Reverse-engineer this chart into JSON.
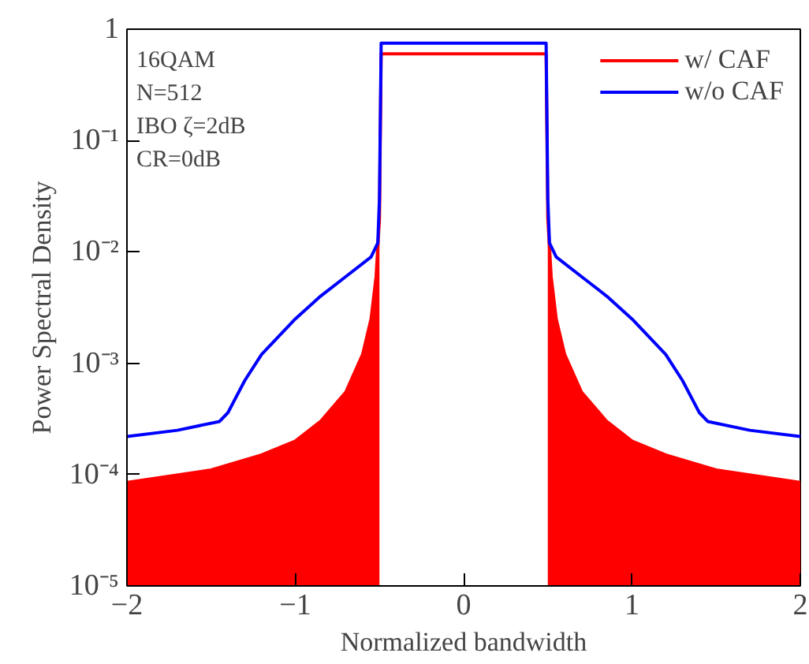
{
  "chart_data": {
    "type": "line",
    "xlabel": "Normalized bandwidth",
    "ylabel": "Power Spectral Density",
    "xlim": [
      -2,
      2
    ],
    "ylim": [
      1e-05,
      1
    ],
    "xticks": [
      -2,
      -1,
      0,
      1,
      2
    ],
    "yticks": [
      {
        "value": 1e-05,
        "label": "10⁻⁵"
      },
      {
        "value": 0.0001,
        "label": "10⁻⁴"
      },
      {
        "value": 0.001,
        "label": "10⁻³"
      },
      {
        "value": 0.01,
        "label": "10⁻²"
      },
      {
        "value": 0.1,
        "label": "10⁻¹"
      },
      {
        "value": 1,
        "label": "1"
      }
    ],
    "log": "y",
    "grid": false,
    "legend": "top right",
    "annotations": [
      "16QAM",
      "N=512",
      "IBO ζ=2dB",
      "CR=0dB"
    ],
    "series": [
      {
        "name": "w/ CAF",
        "color": "#ff0000",
        "x": [
          -2,
          -1.5,
          -1.2,
          -1,
          -0.85,
          -0.7,
          -0.6,
          -0.55,
          -0.52,
          -0.5,
          -0.49,
          0.49,
          0.5,
          0.52,
          0.55,
          0.6,
          0.7,
          0.85,
          1,
          1.2,
          1.5,
          2
        ],
        "values": [
          8.5e-05,
          0.00011,
          0.00015,
          0.0002,
          0.0003,
          0.00055,
          0.0012,
          0.0025,
          0.006,
          0.02,
          0.6,
          0.6,
          0.02,
          0.006,
          0.0025,
          0.0012,
          0.00055,
          0.0003,
          0.0002,
          0.00015,
          0.00011,
          8.5e-05
        ]
      },
      {
        "type": "area",
        "color": "#ff0000",
        "x": [
          -2,
          -1.5,
          -1.2,
          -1,
          -0.85,
          -0.7,
          -0.6,
          -0.55,
          -0.52,
          -0.5
        ],
        "values": [
          8.5e-05,
          0.00011,
          0.00015,
          0.0002,
          0.0003,
          0.00055,
          0.0012,
          0.0025,
          0.006,
          0.02
        ]
      },
      {
        "type": "area",
        "color": "#ff0000",
        "x": [
          0.5,
          0.52,
          0.55,
          0.6,
          0.7,
          0.85,
          1,
          1.2,
          1.5,
          2
        ],
        "values": [
          0.02,
          0.006,
          0.0025,
          0.0012,
          0.00055,
          0.0003,
          0.0002,
          0.00015,
          0.00011,
          8.5e-05
        ]
      },
      {
        "name": "w/o CAF",
        "type": "line",
        "color": "#0000ff",
        "x": [
          -2,
          -1.7,
          -1.45,
          -1.4,
          -1.3,
          -1.2,
          -1,
          -0.85,
          -0.7,
          -0.55,
          -0.51,
          -0.5,
          -0.49,
          0.49,
          0.5,
          0.51,
          0.55,
          0.7,
          0.85,
          1,
          1.2,
          1.3,
          1.4,
          1.45,
          1.7,
          2
        ],
        "values": [
          0.00022,
          0.00025,
          0.0003,
          0.00036,
          0.0007,
          0.0012,
          0.0025,
          0.004,
          0.006,
          0.009,
          0.012,
          0.03,
          0.75,
          0.75,
          0.03,
          0.012,
          0.009,
          0.006,
          0.004,
          0.0025,
          0.0012,
          0.0007,
          0.00036,
          0.0003,
          0.00025,
          0.00022
        ]
      }
    ]
  }
}
